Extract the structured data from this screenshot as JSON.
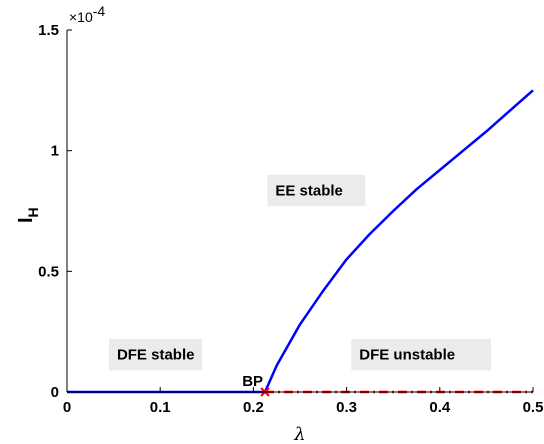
{
  "chart_data": {
    "type": "line",
    "xlabel": "λ",
    "ylabel": {
      "main": "I",
      "sub": "H"
    },
    "y_exponent": {
      "base": "×10",
      "power": "-4"
    },
    "xlim": [
      0,
      0.5
    ],
    "ylim": [
      0,
      1.5
    ],
    "x_ticks": [
      "0",
      "0.1",
      "0.2",
      "0.3",
      "0.4",
      "0.5"
    ],
    "y_ticks": [
      "0",
      "0.5",
      "1",
      "1.5"
    ],
    "grid": false,
    "branch_point": {
      "label": "BP",
      "x": 0.2125,
      "y": 0
    },
    "series": [
      {
        "style": "solid",
        "color": "#0000ff",
        "x": [
          0,
          0.05,
          0.1,
          0.15,
          0.2,
          0.2125
        ],
        "y": [
          0,
          0,
          0,
          0,
          0,
          0
        ]
      },
      {
        "style": "solid",
        "color": "#0000ff",
        "x": [
          0.2125,
          0.225,
          0.25,
          0.275,
          0.3,
          0.325,
          0.35,
          0.375,
          0.4,
          0.425,
          0.45,
          0.475,
          0.5
        ],
        "y": [
          0,
          0.11,
          0.28,
          0.42,
          0.55,
          0.655,
          0.75,
          0.84,
          0.92,
          1.0,
          1.08,
          1.165,
          1.25
        ]
      },
      {
        "style": "dashdot",
        "color": "#ff0000",
        "x": [
          0.2125,
          0.3,
          0.4,
          0.5
        ],
        "y": [
          0,
          0,
          0,
          0
        ]
      }
    ],
    "annotations": [
      {
        "text": "DFE stable",
        "x": 0.045,
        "y": 0.09,
        "w": 0.1,
        "h": 0.13
      },
      {
        "text": "EE stable",
        "x": 0.215,
        "y": 0.77,
        "w": 0.105,
        "h": 0.13
      },
      {
        "text": "DFE unstable",
        "x": 0.305,
        "y": 0.09,
        "w": 0.15,
        "h": 0.13
      }
    ],
    "colors": {
      "stable": "#0000ff",
      "unstable": "#ff0000",
      "label_box": "#ebebeb"
    }
  }
}
